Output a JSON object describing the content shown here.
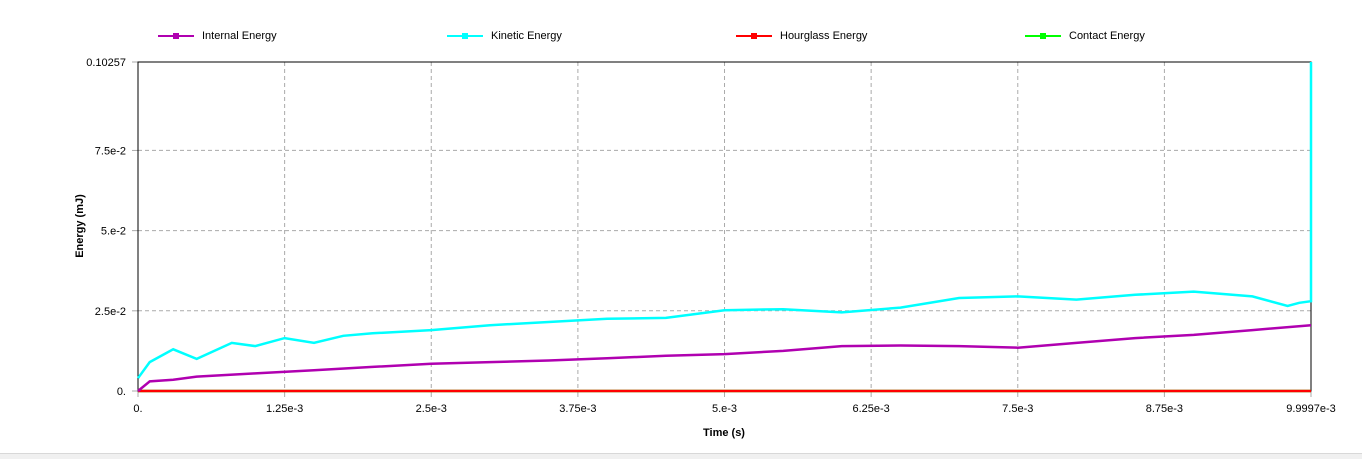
{
  "chart_data": {
    "type": "line",
    "xlabel": "Time (s)",
    "ylabel": "Energy (mJ)",
    "xlim": [
      0,
      0.0099997
    ],
    "ylim": [
      0,
      0.10257
    ],
    "grid": true,
    "legend_position": "top",
    "x_ticks": [
      0,
      0.00125,
      0.0025,
      0.00375,
      0.005,
      0.00625,
      0.0075,
      0.00875,
      0.0099997
    ],
    "x_tick_labels": [
      "0.",
      "1.25e-3",
      "2.5e-3",
      "3.75e-3",
      "5.e-3",
      "6.25e-3",
      "7.5e-3",
      "8.75e-3",
      "9.9997e-3"
    ],
    "y_ticks": [
      0,
      0.025,
      0.05,
      0.075,
      0.10257
    ],
    "y_tick_labels": [
      "0.",
      "2.5e-2",
      "5.e-2",
      "7.5e-2",
      "0.10257"
    ],
    "series": [
      {
        "name": "Internal Energy",
        "color": "#b000b0",
        "x": [
          0,
          0.0001,
          0.0003,
          0.0005,
          0.001,
          0.0015,
          0.002,
          0.0025,
          0.003,
          0.0035,
          0.004,
          0.0045,
          0.005,
          0.0055,
          0.006,
          0.0065,
          0.007,
          0.0075,
          0.008,
          0.0085,
          0.009,
          0.0095,
          0.0099997
        ],
        "y": [
          0,
          0.003,
          0.0035,
          0.0045,
          0.0055,
          0.0065,
          0.0075,
          0.0085,
          0.009,
          0.0095,
          0.0102,
          0.011,
          0.0115,
          0.0125,
          0.014,
          0.0142,
          0.014,
          0.0135,
          0.015,
          0.0165,
          0.0175,
          0.019,
          0.0205
        ]
      },
      {
        "name": "Kinetic Energy",
        "color": "#00ffff",
        "x": [
          0,
          0.0001,
          0.0003,
          0.0005,
          0.0008,
          0.001,
          0.00125,
          0.0015,
          0.00175,
          0.002,
          0.0025,
          0.003,
          0.0035,
          0.004,
          0.0045,
          0.005,
          0.0055,
          0.006,
          0.0065,
          0.007,
          0.0075,
          0.008,
          0.0085,
          0.009,
          0.0095,
          0.0098,
          0.0099,
          0.0099997,
          0.0099997
        ],
        "y": [
          0.004,
          0.009,
          0.013,
          0.01,
          0.015,
          0.014,
          0.0165,
          0.015,
          0.0172,
          0.018,
          0.019,
          0.0205,
          0.0215,
          0.0225,
          0.0228,
          0.0252,
          0.0255,
          0.0245,
          0.026,
          0.029,
          0.0295,
          0.0285,
          0.03,
          0.031,
          0.0295,
          0.0265,
          0.0275,
          0.028,
          0.10257
        ]
      },
      {
        "name": "Hourglass Energy",
        "color": "#ff0000",
        "x": [
          0,
          0.0099997
        ],
        "y": [
          0,
          0
        ]
      },
      {
        "name": "Contact Energy",
        "color": "#00ff00",
        "x": [
          0,
          0.0099997
        ],
        "y": [
          0,
          0
        ]
      }
    ]
  }
}
